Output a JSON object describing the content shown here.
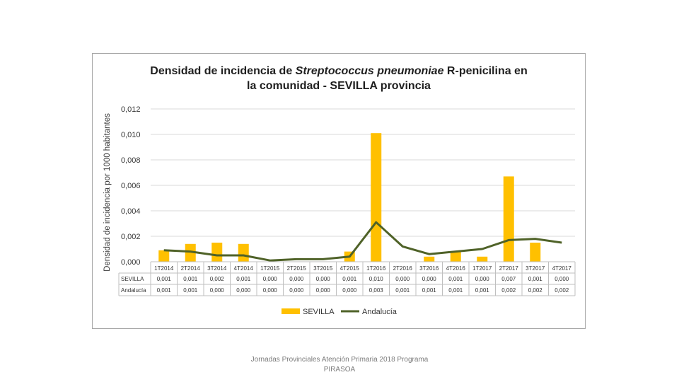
{
  "chart_data": {
    "type": "bar",
    "title_line1_prefix": "Densidad de incidencia de ",
    "title_line1_italic": "Streptococcus pneumoniae",
    "title_line1_suffix": " R-penicilina en",
    "title_line2": "la comunidad - SEVILLA provincia",
    "ylabel": "Densidad de incidencia por 1000 habitantes",
    "ylim": [
      0,
      0.012
    ],
    "yticks": [
      0,
      0.002,
      0.004,
      0.006,
      0.008,
      0.01,
      0.012
    ],
    "ytick_labels": [
      "0,000",
      "0,002",
      "0,004",
      "0,006",
      "0,008",
      "0,010",
      "0,012"
    ],
    "categories": [
      "1T2014",
      "2T2014",
      "3T2014",
      "4T2014",
      "1T2015",
      "2T2015",
      "3T2015",
      "4T2015",
      "1T2016",
      "2T2016",
      "3T2016",
      "4T2016",
      "1T2017",
      "2T2017",
      "3T2017",
      "4T2017"
    ],
    "series": [
      {
        "name": "SEVILLA",
        "kind": "bar",
        "color": "#FFC000",
        "values": [
          0.0009,
          0.0014,
          0.0015,
          0.0014,
          0.0,
          0.0,
          0.0,
          0.0008,
          0.0101,
          0.0,
          0.0004,
          0.0008,
          0.0004,
          0.0067,
          0.0015,
          0.0
        ],
        "table_labels": [
          "0,001",
          "0,001",
          "0,002",
          "0,001",
          "0,000",
          "0,000",
          "0,000",
          "0,001",
          "0,010",
          "0,000",
          "0,000",
          "0,001",
          "0,000",
          "0,007",
          "0,001",
          "0,000"
        ]
      },
      {
        "name": "Andalucía",
        "kind": "line",
        "color": "#4F6228",
        "values": [
          0.0009,
          0.0008,
          0.0005,
          0.0005,
          0.0001,
          0.0002,
          0.0002,
          0.0004,
          0.0031,
          0.0012,
          0.0006,
          0.0008,
          0.001,
          0.0017,
          0.0018,
          0.0015
        ],
        "table_labels": [
          "0,001",
          "0,001",
          "0,000",
          "0,000",
          "0,000",
          "0,000",
          "0,000",
          "0,000",
          "0,003",
          "0,001",
          "0,001",
          "0,001",
          "0,001",
          "0,002",
          "0,002",
          "0,002"
        ]
      }
    ],
    "table_row_labels": [
      "SEVILLA",
      "Andalucía"
    ],
    "legend": [
      "SEVILLA",
      "Andalucía"
    ],
    "legend_position": "bottom"
  },
  "footer": {
    "line1": "Jornadas Provinciales Atención Primaria 2018 Programa",
    "line2": "PIRASOA"
  }
}
